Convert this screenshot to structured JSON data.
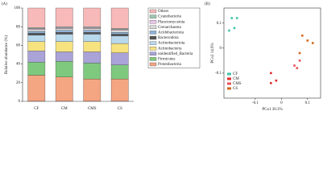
{
  "chart_data": [
    {
      "type": "bar",
      "stacked": true,
      "panel_label": "(A)",
      "ylabel": "Relative abundance (%)",
      "categories": [
        "CF",
        "CM",
        "CMS",
        "CS"
      ],
      "ylim": [
        0,
        100
      ],
      "yticks": [
        0,
        20,
        40,
        60,
        80,
        100
      ],
      "series": [
        {
          "name": "Proteobacteria",
          "color": "#f4a582",
          "values": [
            28,
            26,
            24,
            24
          ]
        },
        {
          "name": "Firmicutes",
          "color": "#7fc97f",
          "values": [
            14,
            17,
            17,
            15
          ]
        },
        {
          "name": "unidentified_Bacteria",
          "color": "#a9a3d8",
          "values": [
            12,
            10,
            12,
            13
          ]
        },
        {
          "name": "Actinobacteria",
          "color": "#f6e27f",
          "values": [
            10,
            11,
            11,
            10
          ]
        },
        {
          "name": "Actinobacteriota",
          "color": "#b8d8ec",
          "values": [
            7,
            8,
            8,
            8
          ]
        },
        {
          "name": "Bacteroidota",
          "color": "#555555",
          "values": [
            2,
            2,
            2,
            2
          ]
        },
        {
          "name": "Acidobacteriota",
          "color": "#8fb3d9",
          "values": [
            2,
            2,
            2,
            2
          ]
        },
        {
          "name": "Crenarchaeota",
          "color": "#d9d9d9",
          "values": [
            2,
            2,
            2,
            2
          ]
        },
        {
          "name": "Planctomycetota",
          "color": "#e9c6e8",
          "values": [
            1,
            1,
            1,
            1
          ]
        },
        {
          "name": "Cyanobacteria",
          "color": "#9ec6b0",
          "values": [
            1,
            1,
            1,
            1
          ]
        },
        {
          "name": "Others",
          "color": "#f8b9b9",
          "values": [
            21,
            20,
            20,
            22
          ]
        }
      ]
    },
    {
      "type": "scatter",
      "panel_label": "(B)",
      "xlabel": "PCo1 30.3%",
      "ylabel": "PCo2 14.9%",
      "xlim": [
        -0.22,
        0.15
      ],
      "ylim": [
        -0.2,
        0.16
      ],
      "xticks": [
        -0.1,
        0,
        0.1
      ],
      "yticks": [
        -0.1,
        0,
        0.1
      ],
      "series": [
        {
          "name": "CF",
          "color": "#3fc5a8",
          "x": [
            -0.19,
            -0.17,
            -0.2,
            -0.18
          ],
          "y": [
            0.12,
            0.12,
            0.07,
            0.08
          ]
        },
        {
          "name": "CM",
          "color": "#e02b2b",
          "x": [
            -0.04,
            -0.02,
            -0.04
          ],
          "y": [
            -0.1,
            -0.13,
            -0.14
          ]
        },
        {
          "name": "CMS",
          "color": "#e8505a",
          "x": [
            0.05,
            0.07,
            0.06
          ],
          "y": [
            -0.07,
            -0.05,
            -0.08
          ]
        },
        {
          "name": "CS",
          "color": "#d2691e",
          "x": [
            0.08,
            0.1,
            0.12,
            0.07
          ],
          "y": [
            0.05,
            0.03,
            0.02,
            -0.02
          ]
        }
      ]
    }
  ]
}
